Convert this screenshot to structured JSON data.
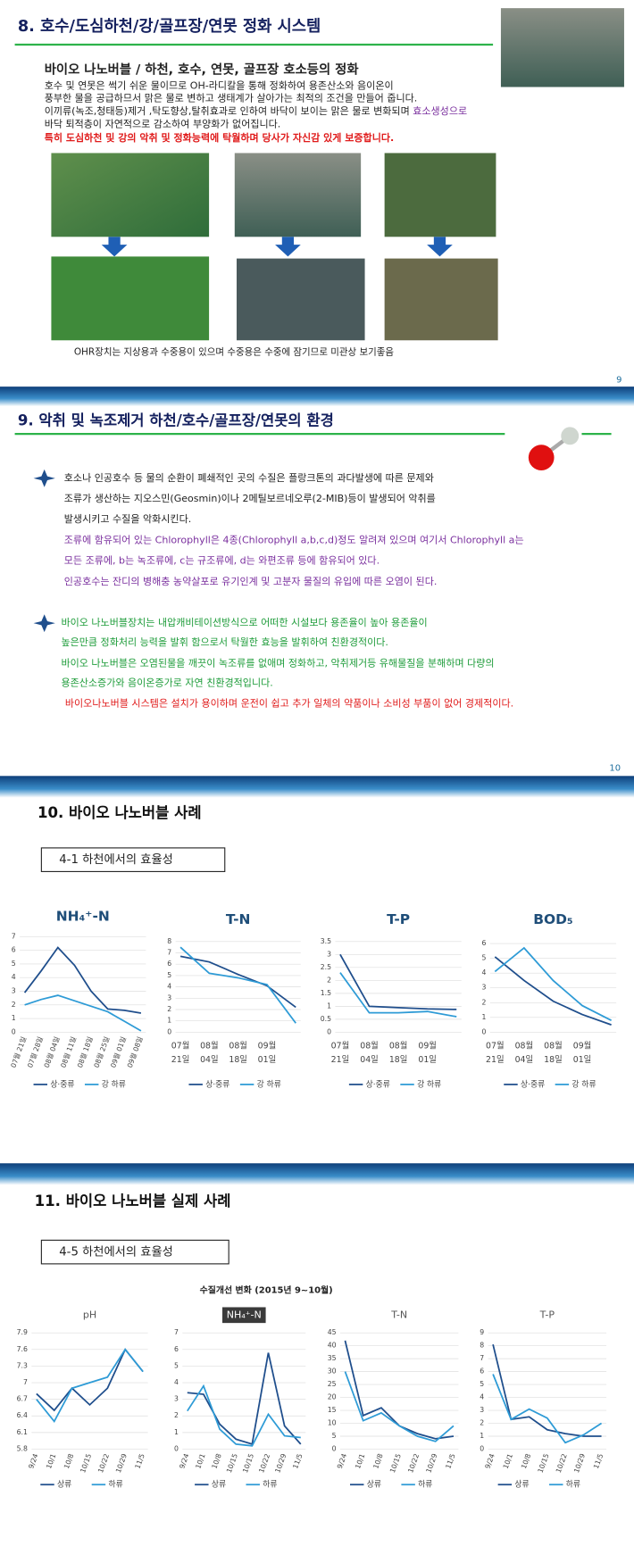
{
  "slides": [
    {
      "title": "8. 호수/도심하천/강/골프장/연못 정화 시스템",
      "subtitle": "바이오 나노버블 / 하천, 호수, 연못, 골프장 호소등의 정화",
      "body": [
        "호수 및 연못은 썩기 쉬운 물이므로 OH-라디칼을 통해 정화하여 용존산소와 음이온이",
        "풍부한 물을 공급하므서 맑은 물로 변하고 생태계가 살아가는 최적의 조건을 만들어 줍니다.",
        "이끼류(녹조,청태등)제거 ,탁도향상,탈취효과로 인하여 바닥이 보이는 맑은 물로 변화되며 "
      ],
      "highlight": "효소생성으로",
      "body_end": "바닥 퇴적층이 자연적으로 감소하여 부양화가 없어집니다.",
      "notice": "특히 도심하천 및 강의 악취 및 정화능력에 탁월하며 당사가 자신감 있게 보증합니다.",
      "caption": "OHR장치는 지상용과 수중용이 있으며 수중용은 수중에 잠기므로 미관상 보기좋음",
      "page": "9"
    },
    {
      "title": "9. 악취 및 녹조제거 하천/호수/골프장/연못의 환경",
      "para1": [
        "호소나 인공호수 등 물의 순환이 폐쇄적인 곳의 수질은 플랑크톤의 과다발생에 따른 문제와",
        "조류가 생산하는 지오스민(Geosmin)이나 2메틸보르네오루(2-MIB)등이 발생되어 악취를",
        "발생시키고 수질을 악화시킨다."
      ],
      "para1_purple": [
        "조류에 함유되어 있는 Chlorophyll은 4종(Chlorophyll a,b,c,d)정도 알려져 있으며 여기서 Chlorophyll a는",
        "모든 조류에, b는 녹조류에, c는 규조류에, d는 와편조류 등에 함유되어 있다.",
        "인공호수는 잔디의 병해충 농약살포로 유기인계 및 고분자 물질의 유입에 따른 오염이 된다."
      ],
      "para2": [
        "바이오 나노버블장치는  내압캐비테이션방식으로 어떠한 시설보다 용존율이 높아 용존율이",
        "높은만큼 정화처리 능력을 발휘 함으로서 탁월한 효능을  발휘하여 친환경적이다.",
        "바이오 나노버블은  오염된물을 깨끗이 녹조류를 없애며 정화하고, 악취제거등 유해물질을 분해하며 다량의",
        "용존산소증가와 음이온증가로 자연 친환경적입니다."
      ],
      "para2_red": "바이오나노버블 시스템은 설치가 용이하며 운전이 쉽고  추가 일체의 약품이나 소비성 부품이 없어 경제적이다.",
      "page": "10"
    },
    {
      "title": "10. 바이오 나노버블  사례",
      "box": "4-1 하천에서의 효율성"
    },
    {
      "title": "11. 바이오 나노버블 실제 사례",
      "box": "4-5 하천에서의 효율성",
      "subtitle": "수질개선 변화 (2015년 9~10월)"
    }
  ],
  "chart_data": [
    {
      "type": "line",
      "title": "NH₄⁺-N",
      "categories": [
        "07월 21일",
        "07월 28일",
        "08월 04일",
        "08월 11일",
        "08월 18일",
        "08월 25일",
        "09월 01일",
        "09월 08일"
      ],
      "series": [
        {
          "name": "상·중류",
          "color": "#1f4e8c",
          "values": [
            2.9,
            4.5,
            6.2,
            4.9,
            3.0,
            1.7,
            1.6,
            1.4
          ]
        },
        {
          "name": "강 하류",
          "color": "#2e9bd6",
          "values": [
            2.0,
            2.4,
            2.7,
            2.3,
            1.9,
            1.5,
            0.8,
            0.1
          ]
        }
      ],
      "ylim": [
        0,
        7
      ],
      "yticks": [
        0,
        1,
        2,
        3,
        4,
        5,
        6,
        7
      ],
      "grid": true
    },
    {
      "type": "line",
      "title": "T-N",
      "categories": [
        [
          "07월",
          "21일"
        ],
        [
          "08월",
          "04일"
        ],
        [
          "08월",
          "18일"
        ],
        [
          "09월",
          "01일"
        ],
        null
      ],
      "series": [
        {
          "name": "상·중류",
          "color": "#1f4e8c",
          "values": [
            6.7,
            6.2,
            5.1,
            4.1,
            2.2
          ]
        },
        {
          "name": "강 하류",
          "color": "#2e9bd6",
          "values": [
            7.5,
            5.2,
            4.8,
            4.2,
            0.8
          ]
        }
      ],
      "ylim": [
        0,
        8
      ],
      "yticks": [
        0,
        1,
        2,
        3,
        4,
        5,
        6,
        7,
        8
      ],
      "grid": true
    },
    {
      "type": "line",
      "title": "T-P",
      "categories": [
        [
          "07월",
          "21일"
        ],
        [
          "08월",
          "04일"
        ],
        [
          "08월",
          "18일"
        ],
        [
          "09월",
          "01일"
        ],
        null
      ],
      "series": [
        {
          "name": "상·중류",
          "color": "#1f4e8c",
          "values": [
            3.0,
            1.0,
            0.95,
            0.9,
            0.88
          ]
        },
        {
          "name": "강 하류",
          "color": "#2e9bd6",
          "values": [
            2.3,
            0.75,
            0.75,
            0.8,
            0.6
          ]
        }
      ],
      "ylim": [
        0,
        3.5
      ],
      "yticks": [
        0,
        0.5,
        1,
        1.5,
        2,
        2.5,
        3,
        3.5
      ],
      "grid": true
    },
    {
      "type": "line",
      "title": "BOD₅",
      "categories": [
        [
          "07월",
          "21일"
        ],
        [
          "08월",
          "04일"
        ],
        [
          "08월",
          "18일"
        ],
        [
          "09월",
          "01일"
        ],
        null
      ],
      "series": [
        {
          "name": "상·중류",
          "color": "#1f4e8c",
          "values": [
            5.1,
            3.5,
            2.1,
            1.2,
            0.5
          ]
        },
        {
          "name": "강 하류",
          "color": "#2e9bd6",
          "values": [
            4.1,
            5.7,
            3.5,
            1.8,
            0.8
          ]
        }
      ],
      "ylim": [
        0,
        6
      ],
      "yticks": [
        0,
        1,
        2,
        3,
        4,
        5,
        6
      ],
      "grid": true
    },
    {
      "type": "line",
      "title": "pH",
      "categories": [
        "9/24",
        "10/1",
        "10/8",
        "10/15",
        "10/22",
        "10/29",
        "11/5"
      ],
      "series": [
        {
          "name": "상류",
          "color": "#1f4e8c",
          "values": [
            6.8,
            6.5,
            6.9,
            6.6,
            6.9,
            7.6,
            7.2
          ]
        },
        {
          "name": "하류",
          "color": "#2e9bd6",
          "values": [
            6.7,
            6.3,
            6.9,
            7.0,
            7.1,
            7.6,
            7.2
          ]
        }
      ],
      "ylim": [
        5.8,
        7.9
      ],
      "yticks": [
        5.8,
        6.1,
        6.4,
        6.7,
        7,
        7.3,
        7.6,
        7.9
      ],
      "grid": true
    },
    {
      "type": "line",
      "title": "NH₄⁺-N",
      "title_background": "#3a3a3a",
      "categories": [
        "9/24",
        "10/1",
        "10/8",
        "10/15",
        "10/15",
        "10/22",
        "10/29",
        "11/5"
      ],
      "series": [
        {
          "name": "상류",
          "color": "#1f4e8c",
          "values": [
            3.4,
            3.3,
            1.5,
            0.6,
            0.3,
            5.8,
            1.4,
            0.3
          ]
        },
        {
          "name": "하류",
          "color": "#2e9bd6",
          "values": [
            2.3,
            3.8,
            1.2,
            0.3,
            0.2,
            2.1,
            0.8,
            0.7
          ]
        }
      ],
      "ylim": [
        0,
        7
      ],
      "yticks": [
        0,
        1,
        2,
        3,
        4,
        5,
        6,
        7
      ],
      "grid": true
    },
    {
      "type": "line",
      "title": "T-N",
      "categories": [
        "9/24",
        "10/1",
        "10/8",
        "10/15",
        "10/22",
        "10/29",
        "11/5"
      ],
      "series": [
        {
          "name": "상류",
          "color": "#1f4e8c",
          "values": [
            42,
            13,
            16,
            9,
            6,
            4,
            5
          ]
        },
        {
          "name": "하류",
          "color": "#2e9bd6",
          "values": [
            30,
            11,
            14,
            9,
            5,
            3,
            9
          ]
        }
      ],
      "ylim": [
        0,
        45
      ],
      "yticks": [
        0,
        5,
        10,
        15,
        20,
        25,
        30,
        35,
        40,
        45
      ],
      "grid": true
    },
    {
      "type": "line",
      "title": "T-P",
      "categories": [
        "9/24",
        "10/1",
        "10/8",
        "10/15",
        "10/22",
        "10/29",
        "11/5"
      ],
      "series": [
        {
          "name": "상류",
          "color": "#1f4e8c",
          "values": [
            8.1,
            2.3,
            2.5,
            1.5,
            1.2,
            1.0,
            1.0
          ]
        },
        {
          "name": "하류",
          "color": "#2e9bd6",
          "values": [
            5.8,
            2.3,
            3.1,
            2.4,
            0.5,
            1.1,
            2.0
          ]
        }
      ],
      "ylim": [
        0,
        9
      ],
      "yticks": [
        0,
        1,
        2,
        3,
        4,
        5,
        6,
        7,
        8,
        9
      ],
      "grid": true
    }
  ]
}
